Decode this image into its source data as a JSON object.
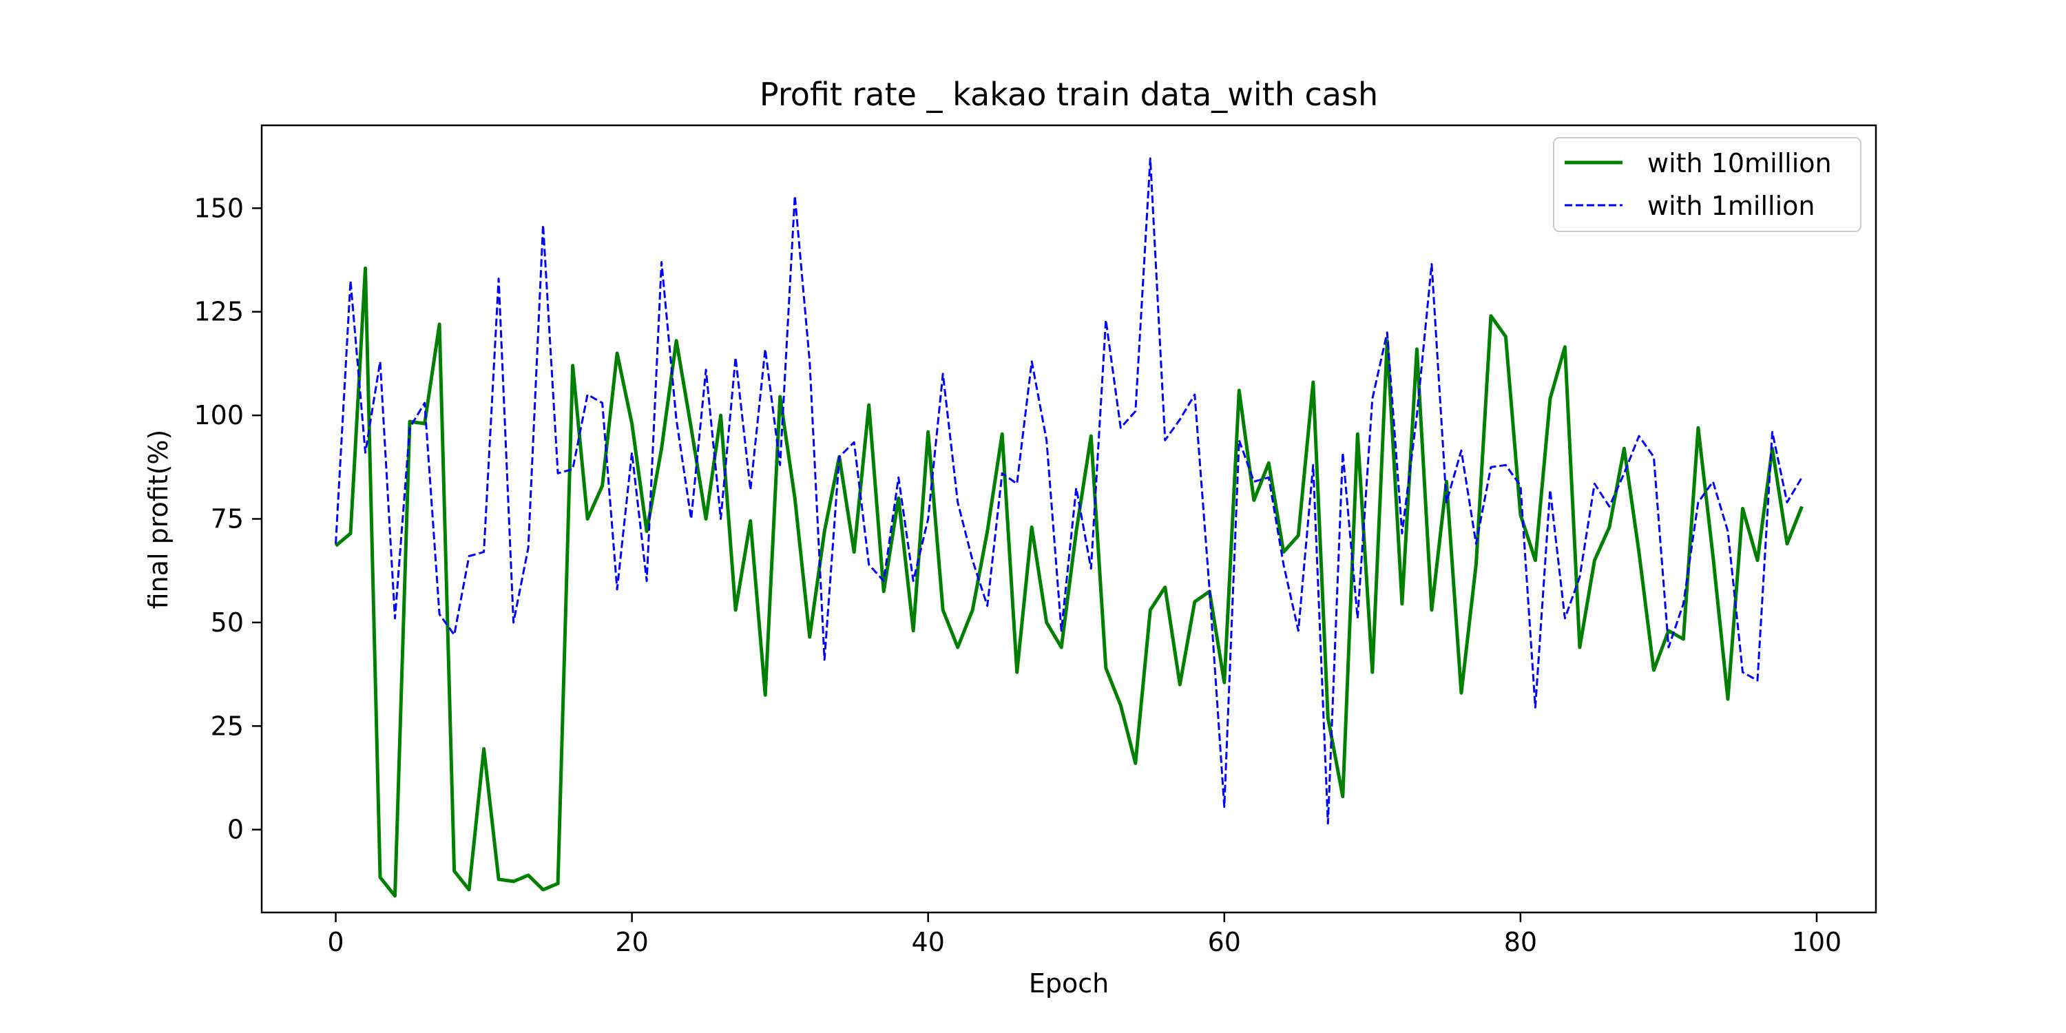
{
  "chart_data": {
    "type": "line",
    "title": "Profit rate _ kakao train data_with cash",
    "xlabel": "Epoch",
    "ylabel": "final profit(%)",
    "xlim": [
      -5,
      104
    ],
    "ylim": [
      -20,
      170
    ],
    "xticks": [
      0,
      20,
      40,
      60,
      80,
      100
    ],
    "yticks": [
      0,
      25,
      50,
      75,
      100,
      125,
      150
    ],
    "grid": false,
    "legend_position": "upper right",
    "series": [
      {
        "name": "with 10million",
        "color": "#008000",
        "style": "solid",
        "x_start": 0,
        "values": [
          68.5,
          71.5,
          135.5,
          -11.5,
          -16,
          98.5,
          98,
          122,
          -10,
          -14.5,
          19.5,
          -12,
          -12.5,
          -11,
          -14.5,
          -13,
          112,
          75,
          83,
          115,
          98,
          72,
          92,
          118,
          97,
          75,
          100,
          53,
          74.5,
          32.5,
          104.5,
          80,
          46.5,
          72,
          90,
          67,
          102.5,
          57.5,
          80,
          48,
          96,
          53,
          44,
          53,
          72,
          95.5,
          38,
          73,
          50,
          44,
          72,
          95,
          39,
          30,
          16,
          53,
          58.5,
          35,
          55,
          57.5,
          35.5,
          106,
          79.5,
          88.5,
          67,
          71,
          108,
          27,
          8,
          95.5,
          38,
          118,
          54.5,
          116,
          53,
          84,
          33,
          64,
          124,
          119,
          76,
          65,
          104,
          116.5,
          44,
          65,
          73,
          92,
          67,
          38.5,
          48,
          46,
          97,
          66,
          31.5,
          77.5,
          65,
          92,
          69,
          78
        ]
      },
      {
        "name": "with 1million",
        "color": "#0000ff",
        "style": "dashed",
        "x_start": 0,
        "values": [
          69,
          132.5,
          91,
          113,
          51,
          97,
          103,
          52,
          47,
          66,
          67,
          133,
          50,
          68,
          146,
          86,
          87,
          105,
          103,
          58,
          91,
          60,
          137,
          99,
          75,
          111,
          75,
          114,
          82,
          116,
          88,
          153,
          113,
          41,
          90,
          93.5,
          64,
          60,
          85,
          60,
          75,
          110,
          79,
          65,
          54,
          86,
          83.5,
          113,
          94,
          48,
          82.5,
          63,
          123,
          97,
          101,
          162,
          94,
          99,
          105,
          58,
          5.5,
          94,
          84,
          85,
          64,
          48,
          88,
          1.5,
          91,
          51,
          104,
          120,
          71.5,
          100,
          136.5,
          79,
          91.5,
          69,
          87.5,
          88,
          83,
          29.5,
          82,
          51,
          61,
          83.5,
          78,
          86,
          95,
          90,
          44,
          54.5,
          79,
          84,
          72,
          38,
          36,
          96,
          79,
          85
        ]
      }
    ]
  }
}
